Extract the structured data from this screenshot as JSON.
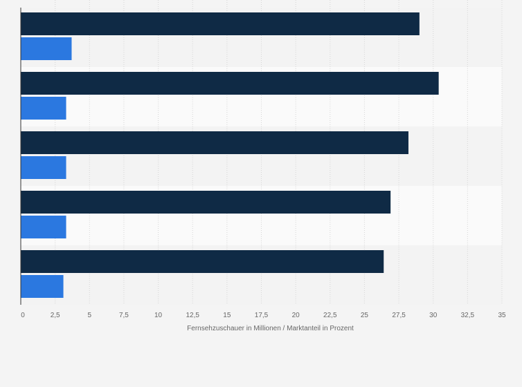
{
  "chart_data": {
    "type": "bar",
    "orientation": "horizontal",
    "title": "",
    "categories": [
      "",
      "",
      "",
      "",
      ""
    ],
    "series": [
      {
        "name": "Fernsehzuschauer in Millionen",
        "color": "#0f2a45",
        "values": [
          29.0,
          30.4,
          28.2,
          26.9,
          26.4
        ]
      },
      {
        "name": "Marktanteil in Prozent",
        "color": "#2b78e0",
        "values": [
          3.7,
          3.3,
          3.3,
          3.3,
          3.1
        ]
      }
    ],
    "xlabel": "Fernsehzuschauer in Millionen / Marktanteil in Prozent",
    "ylabel": "",
    "xlim": [
      0,
      35
    ],
    "ticks": [
      0,
      2.5,
      5,
      7.5,
      10,
      12.5,
      15,
      17.5,
      20,
      22.5,
      25,
      27.5,
      30,
      32.5,
      35
    ],
    "tick_labels": [
      "0",
      "2,5",
      "5",
      "7,5",
      "10",
      "12,5",
      "15",
      "17,5",
      "20",
      "22,5",
      "25",
      "27,5",
      "30",
      "32,5",
      "35"
    ],
    "grid": true,
    "legend": "none"
  },
  "colors": {
    "background": "#f4f4f4",
    "band_light": "#fafafa",
    "band_dark": "#f3f3f3",
    "grid": "#d6d6d6",
    "axis": "#333333",
    "text": "#666666"
  }
}
